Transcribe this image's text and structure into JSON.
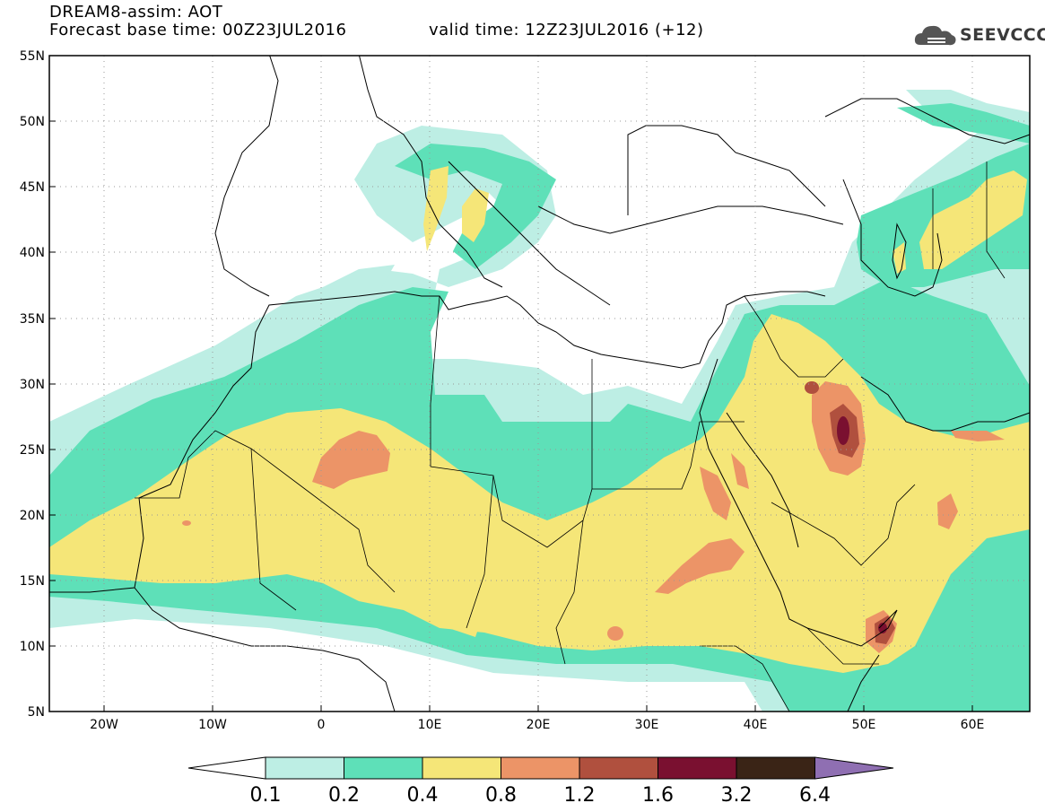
{
  "header": {
    "title": "DREAM8-assim: AOT",
    "base_time": "Forecast base time: 00Z23JUL2016",
    "valid_time": "valid time: 12Z23JUL2016 (+12)",
    "logo_text": "SEEVCCC",
    "logo_icon": "cloud-icon"
  },
  "map": {
    "lat_labels": [
      "55N",
      "50N",
      "45N",
      "40N",
      "35N",
      "30N",
      "25N",
      "20N",
      "15N",
      "10N",
      "5N"
    ],
    "lon_labels": [
      "20W",
      "10W",
      "0",
      "10E",
      "20E",
      "30E",
      "40E",
      "50E",
      "60E"
    ],
    "lat_range": [
      5,
      55
    ],
    "lon_range": [
      -25,
      65
    ],
    "grid": "dotted"
  },
  "colorbar": {
    "labels": [
      "0.1",
      "0.2",
      "0.4",
      "0.8",
      "1.2",
      "1.6",
      "3.2",
      "6.4"
    ],
    "colors": [
      "#bdeee4",
      "#5ee0b8",
      "#f5e678",
      "#ec9467",
      "#b0503e",
      "#7a1030",
      "#3a2416",
      "#8f6fb2"
    ],
    "under_color": "#ffffff"
  }
}
